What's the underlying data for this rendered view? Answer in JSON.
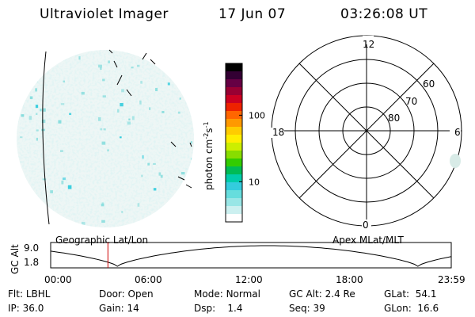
{
  "header": {
    "title": "Ultraviolet Imager",
    "date": "17 Jun 07",
    "time": "03:26:08 UT"
  },
  "colorbar": {
    "label": "photon cm",
    "exp1": "-2",
    "s_label": "s",
    "exp2": "-1",
    "ticks": [
      {
        "label": "100",
        "value": 100
      },
      {
        "label": "10",
        "value": 10
      }
    ],
    "colors": [
      "#000000",
      "#330033",
      "#660044",
      "#990033",
      "#cc0022",
      "#ee2200",
      "#ff6600",
      "#ff9900",
      "#ffcc00",
      "#ffee00",
      "#ccee00",
      "#88dd00",
      "#33cc00",
      "#00bb55",
      "#00ccaa",
      "#33ccdd",
      "#66dddd",
      "#99e6e6",
      "#ccf0f0",
      "#ffffff"
    ]
  },
  "polar": {
    "labels": {
      "top": "12",
      "bottom": "0",
      "left": "18",
      "right": "6"
    },
    "lat_labels": [
      "60",
      "70",
      "80"
    ]
  },
  "timeline": {
    "ylabel": "GC Alt",
    "yticks": [
      "9.0",
      "1.8"
    ],
    "left_caption": "Geographic Lat/Lon",
    "right_caption": "Apex MLat/MLT",
    "xticks": [
      "00:00",
      "06:00",
      "12:00",
      "18:00",
      "23:59"
    ],
    "current_time_hours": 3.43
  },
  "info": {
    "row1": [
      {
        "key": "Flt:",
        "val": "LBHL"
      },
      {
        "key": "Door:",
        "val": "Open"
      },
      {
        "key": "Mode:",
        "val": "Normal"
      },
      {
        "key": "GC Alt:",
        "val": "2.4 Re"
      },
      {
        "key": "GLat:",
        "val": "54.1"
      }
    ],
    "row2": [
      {
        "key": "IP:",
        "val": "36.0"
      },
      {
        "key": "Gain:",
        "val": "14"
      },
      {
        "key": "Dsp:",
        "val": "1.4"
      },
      {
        "key": "Seq:",
        "val": "39"
      },
      {
        "key": "GLon:",
        "val": "16.6"
      }
    ]
  }
}
